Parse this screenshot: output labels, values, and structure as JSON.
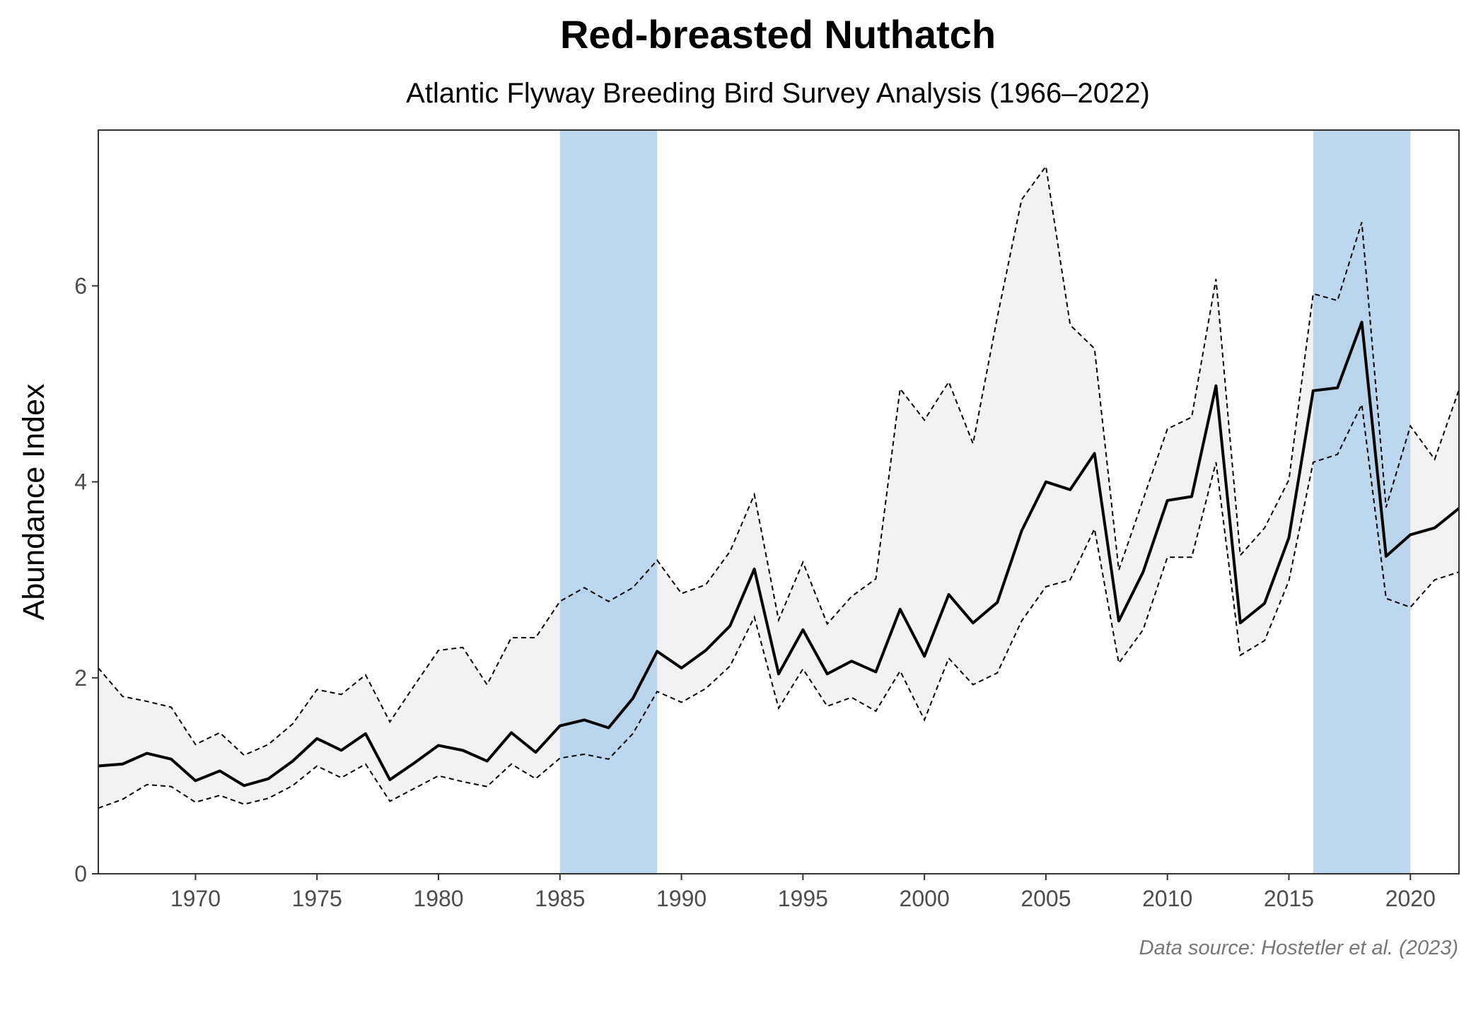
{
  "chart_data": {
    "type": "line",
    "title": "Red-breasted Nuthatch",
    "subtitle": "Atlantic Flyway Breeding Bird Survey Analysis (1966–2022)",
    "xlabel": "",
    "ylabel": "Abundance Index",
    "caption": "Data source: Hostetler et al. (2023)",
    "xlim": [
      1966,
      2022
    ],
    "ylim": [
      0,
      7.59
    ],
    "x_ticks": [
      1970,
      1975,
      1980,
      1985,
      1990,
      1995,
      2000,
      2005,
      2010,
      2015,
      2020
    ],
    "y_ticks": [
      0,
      2,
      4,
      6
    ],
    "grid": false,
    "highlight_periods": [
      [
        1985,
        1989
      ],
      [
        2016,
        2020
      ]
    ],
    "colors": {
      "line": "#000000",
      "ribbon": "#f2f2f2",
      "highlight": "#a7c9e8"
    },
    "x": [
      1966,
      1967,
      1968,
      1969,
      1970,
      1971,
      1972,
      1973,
      1974,
      1975,
      1976,
      1977,
      1978,
      1979,
      1980,
      1981,
      1982,
      1983,
      1984,
      1985,
      1986,
      1987,
      1988,
      1989,
      1990,
      1991,
      1992,
      1993,
      1994,
      1995,
      1996,
      1997,
      1998,
      1999,
      2000,
      2001,
      2002,
      2003,
      2004,
      2005,
      2006,
      2007,
      2008,
      2009,
      2010,
      2011,
      2012,
      2013,
      2014,
      2015,
      2016,
      2017,
      2018,
      2019,
      2020,
      2021,
      2022
    ],
    "series": [
      {
        "name": "Abundance Index",
        "style": "solid",
        "values": [
          1.1,
          1.12,
          1.23,
          1.17,
          0.95,
          1.05,
          0.9,
          0.97,
          1.15,
          1.38,
          1.26,
          1.43,
          0.96,
          1.13,
          1.31,
          1.26,
          1.15,
          1.44,
          1.24,
          1.51,
          1.57,
          1.49,
          1.79,
          2.27,
          2.1,
          2.28,
          2.53,
          3.11,
          2.04,
          2.49,
          2.04,
          2.17,
          2.06,
          2.7,
          2.22,
          2.85,
          2.56,
          2.77,
          3.5,
          4.0,
          3.92,
          4.29,
          2.58,
          3.08,
          3.81,
          3.85,
          4.98,
          2.56,
          2.76,
          3.43,
          4.93,
          4.96,
          5.63,
          3.24,
          3.46,
          3.53,
          3.73
        ]
      },
      {
        "name": "Upper credible limit",
        "style": "dashed",
        "values": [
          2.1,
          1.81,
          1.76,
          1.7,
          1.32,
          1.44,
          1.21,
          1.32,
          1.53,
          1.88,
          1.83,
          2.03,
          1.55,
          1.92,
          2.28,
          2.31,
          1.93,
          2.41,
          2.41,
          2.78,
          2.92,
          2.78,
          2.92,
          3.2,
          2.86,
          2.95,
          3.29,
          3.87,
          2.59,
          3.18,
          2.55,
          2.83,
          3.01,
          4.95,
          4.63,
          5.02,
          4.39,
          5.68,
          6.88,
          7.22,
          5.6,
          5.36,
          3.1,
          3.82,
          4.54,
          4.66,
          6.07,
          3.25,
          3.53,
          4.02,
          5.92,
          5.85,
          6.65,
          3.74,
          4.57,
          4.23,
          4.94
        ]
      },
      {
        "name": "Lower credible limit",
        "style": "dashed",
        "values": [
          0.67,
          0.76,
          0.91,
          0.89,
          0.73,
          0.8,
          0.71,
          0.77,
          0.9,
          1.1,
          0.98,
          1.12,
          0.74,
          0.87,
          1.0,
          0.94,
          0.89,
          1.12,
          0.97,
          1.18,
          1.22,
          1.17,
          1.43,
          1.86,
          1.75,
          1.89,
          2.12,
          2.62,
          1.69,
          2.09,
          1.71,
          1.8,
          1.66,
          2.07,
          1.57,
          2.2,
          1.93,
          2.05,
          2.58,
          2.93,
          3.0,
          3.52,
          2.15,
          2.49,
          3.23,
          3.23,
          4.2,
          2.23,
          2.38,
          2.99,
          4.2,
          4.28,
          4.79,
          2.81,
          2.72,
          3.0,
          3.08
        ]
      }
    ]
  }
}
